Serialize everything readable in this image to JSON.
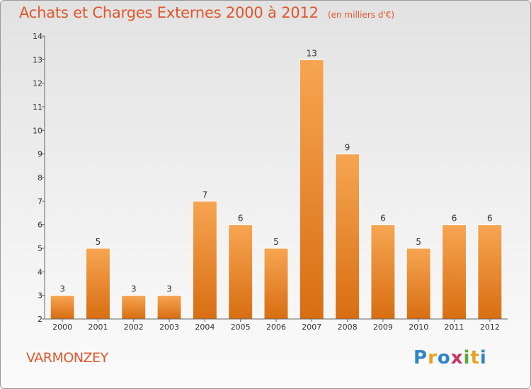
{
  "header": {
    "title": "Achats et Charges Externes 2000 à 2012",
    "subtitle": "(en milliers d'€)"
  },
  "footer": {
    "commune": "VARMONZEY",
    "brand": "Proxiti",
    "brand_colors": [
      "#2e86c9",
      "#e8a21f",
      "#2e86c9",
      "#cc3366",
      "#5aa83c",
      "#e8a21f",
      "#2e86c9"
    ]
  },
  "chart_data": {
    "type": "bar",
    "categories": [
      "2000",
      "2001",
      "2002",
      "2003",
      "2004",
      "2005",
      "2006",
      "2007",
      "2008",
      "2009",
      "2010",
      "2011",
      "2012"
    ],
    "values": [
      3,
      5,
      3,
      3,
      7,
      6,
      5,
      13,
      9,
      6,
      5,
      6,
      6
    ],
    "ylim": [
      2,
      14
    ],
    "yticks": [
      2,
      3,
      4,
      5,
      6,
      7,
      8,
      9,
      10,
      11,
      12,
      13,
      14
    ],
    "bar_color": "#f28a2c",
    "grid": false
  }
}
